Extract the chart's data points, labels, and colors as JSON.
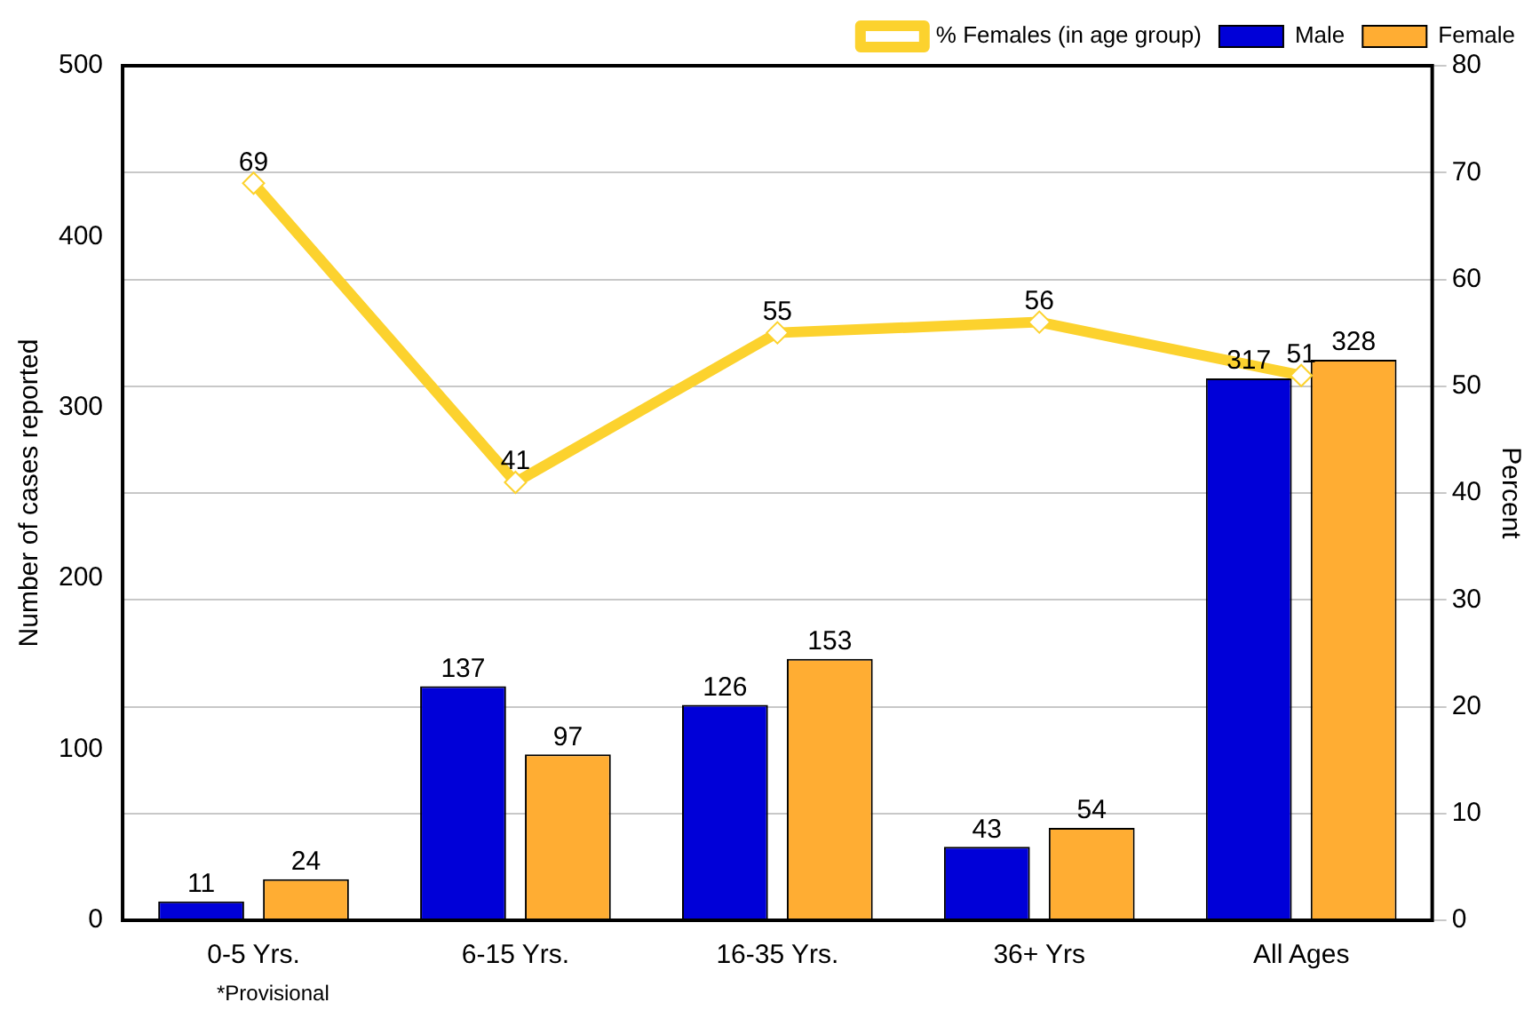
{
  "chart_data": {
    "type": "bar",
    "ylabel": "Number of cases reported",
    "y2label": "Percent",
    "categories": [
      "0-5 Yrs.",
      "6-15 Yrs.",
      "16-35 Yrs.",
      "36+ Yrs",
      "All Ages"
    ],
    "series": [
      {
        "name": "Male",
        "color": "#0000d8",
        "values": [
          11,
          137,
          126,
          43,
          317
        ]
      },
      {
        "name": "Female",
        "color": "#ffad33",
        "values": [
          24,
          97,
          153,
          54,
          328
        ]
      },
      {
        "name": "% Females (in age group)",
        "type": "line",
        "axis": "y2",
        "color": "#fcd22e",
        "marker": "diamond",
        "values": [
          69,
          41,
          55,
          56,
          51
        ]
      }
    ],
    "ylim": [
      0,
      500
    ],
    "yticks": [
      0,
      100,
      200,
      300,
      400,
      500
    ],
    "y2lim": [
      0,
      80
    ],
    "y2ticks": [
      0,
      10,
      20,
      30,
      40,
      50,
      60,
      70,
      80
    ],
    "grid": "y",
    "legend": "top right",
    "data_labels": true,
    "annotations": [
      "*Provisional"
    ]
  }
}
